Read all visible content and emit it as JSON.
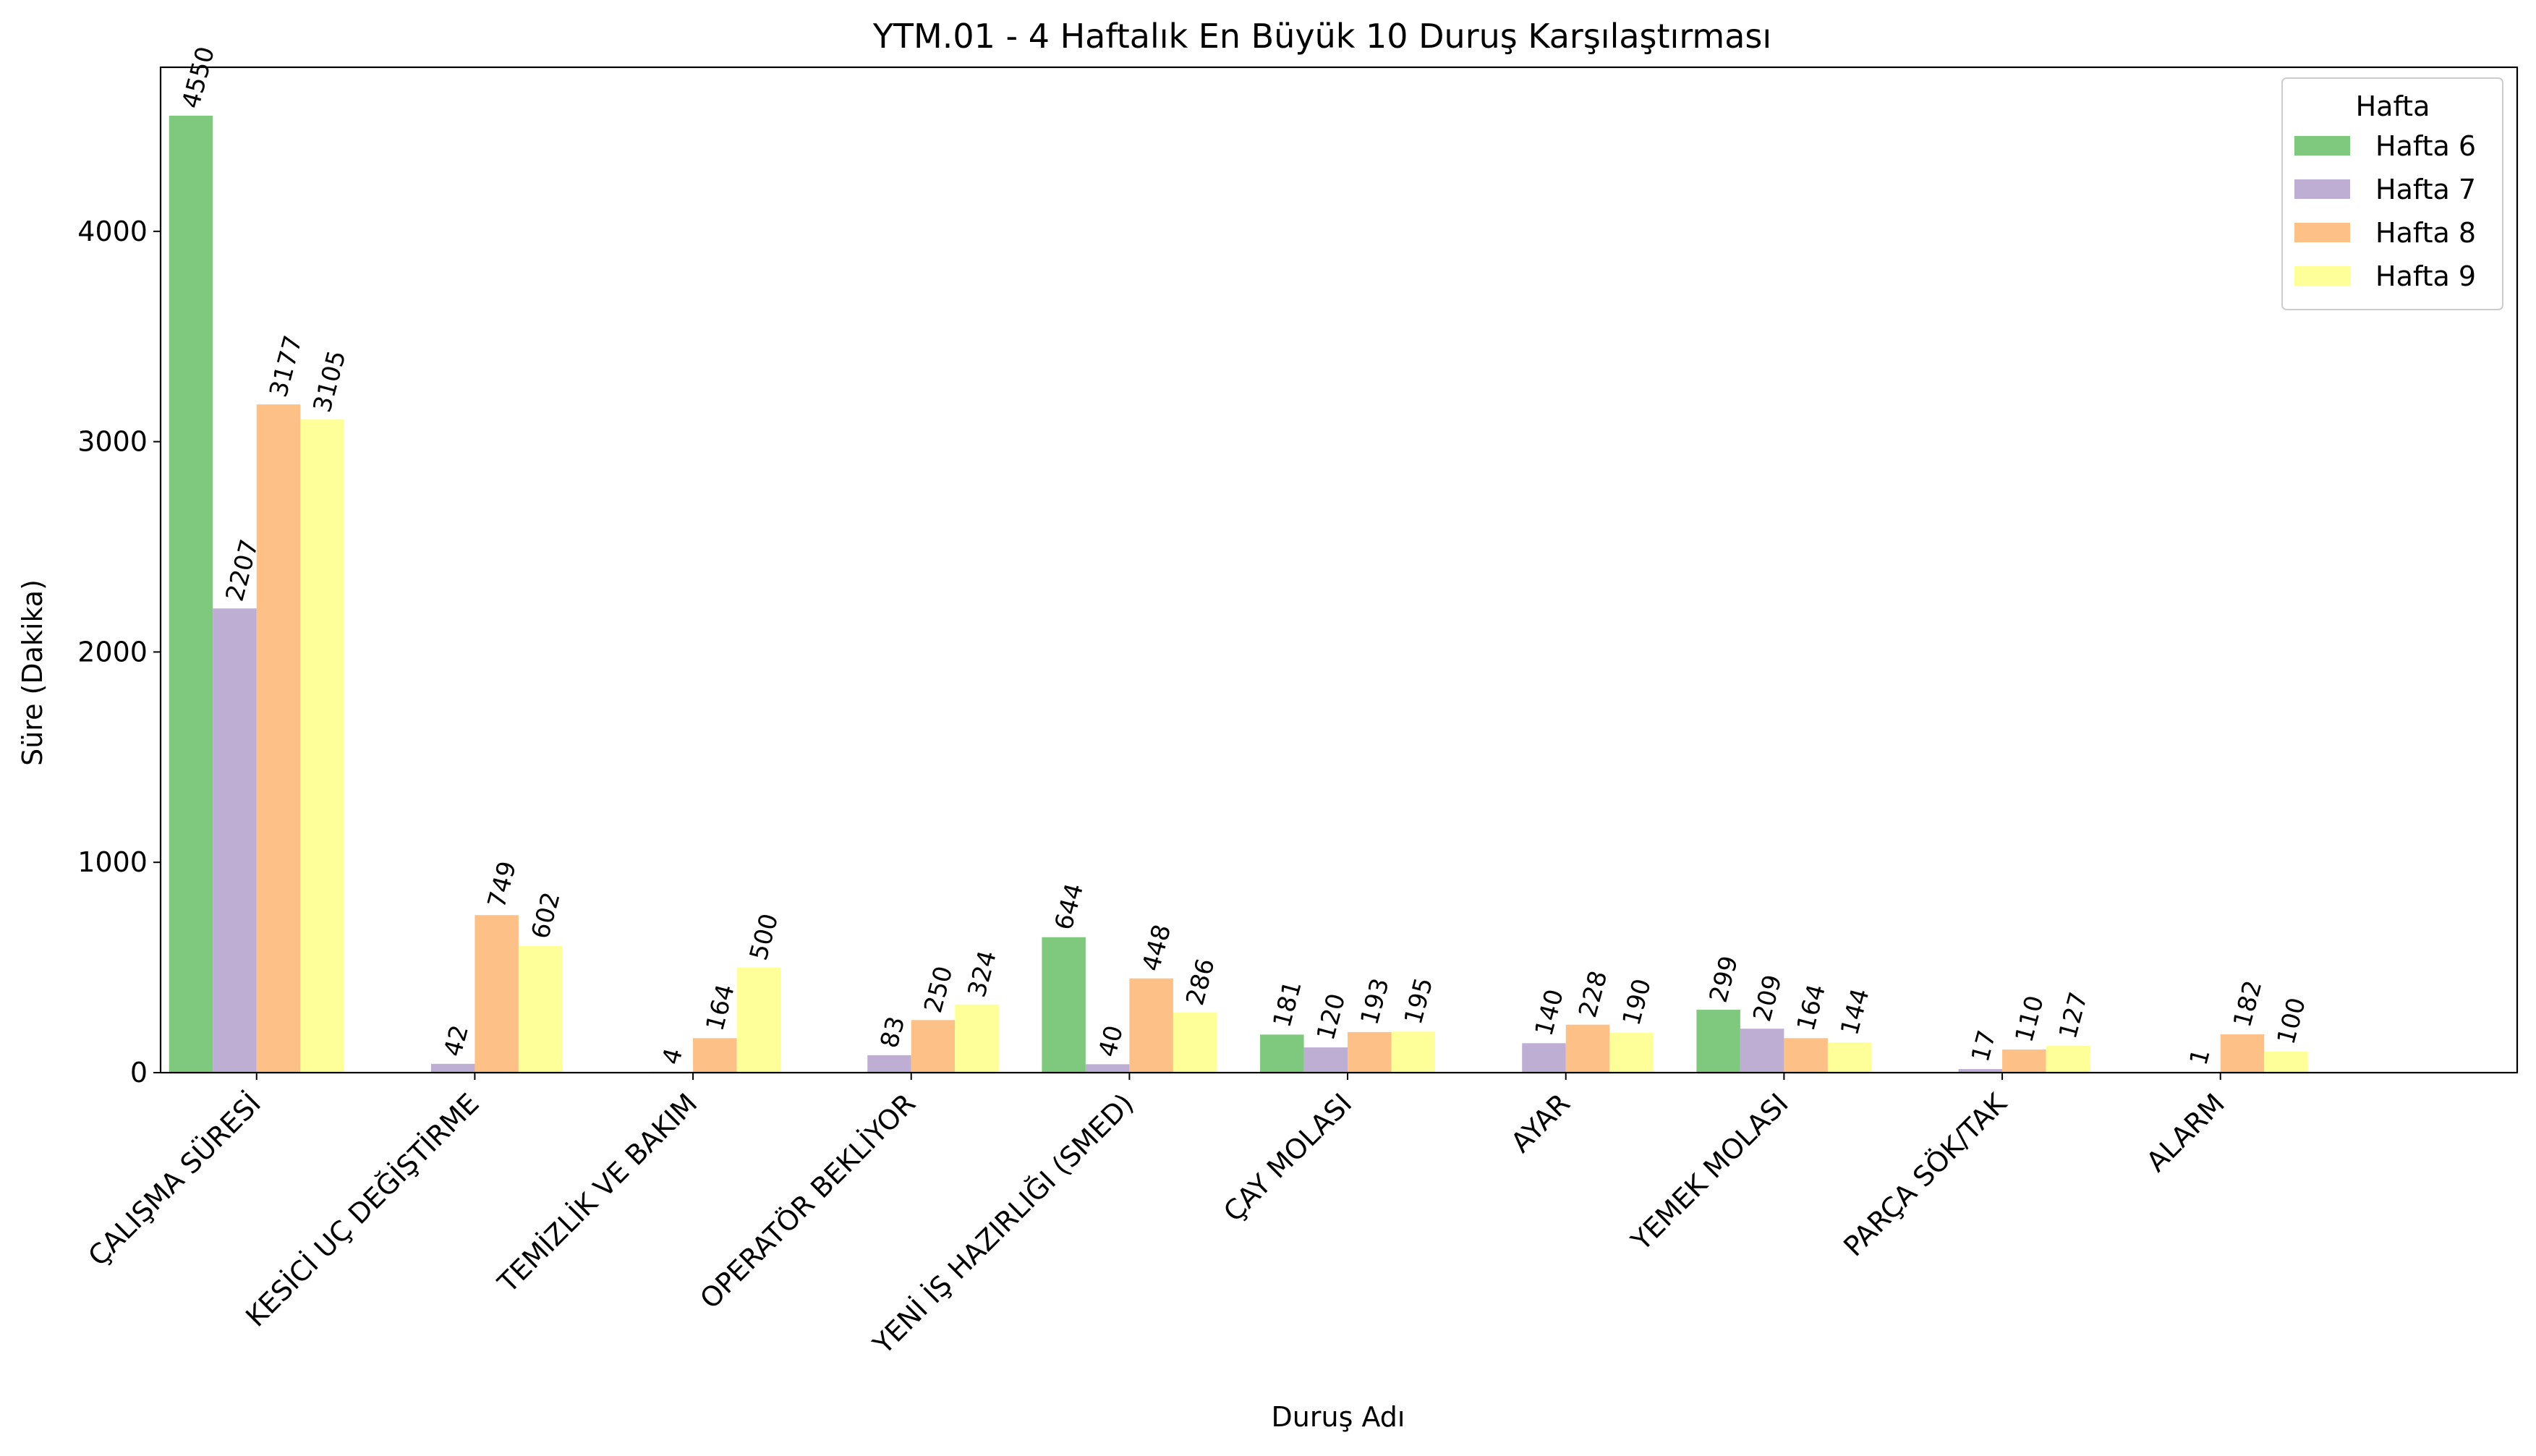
{
  "chart_data": {
    "type": "bar",
    "title": "YTM.01 - 4 Haftalık En Büyük 10 Duruş Karşılaştırması",
    "xlabel": "Duruş Adı",
    "ylabel": "Süre (Dakika)",
    "ylim": [
      0,
      4780
    ],
    "yticks": [
      0,
      1000,
      2000,
      3000,
      4000
    ],
    "categories": [
      "ÇALIŞMA SÜRESİ",
      "KESİCİ UÇ DEĞİŞTİRME",
      "TEMİZLİK VE BAKIM",
      "OPERATÖR BEKLİYOR",
      "YENİ İŞ HAZIRLIĞI (SMED)",
      "ÇAY MOLASI",
      "AYAR",
      "YEMEK MOLASI",
      "PARÇA SÖK/TAK",
      "ALARM"
    ],
    "series": [
      {
        "name": "Hafta 6",
        "color": "#7fc97f",
        "values": [
          4550,
          null,
          null,
          null,
          644,
          181,
          null,
          299,
          null,
          null
        ]
      },
      {
        "name": "Hafta 7",
        "color": "#beaed4",
        "values": [
          2207,
          42,
          4,
          83,
          40,
          120,
          140,
          209,
          17,
          1
        ]
      },
      {
        "name": "Hafta 8",
        "color": "#fdc086",
        "values": [
          3177,
          749,
          164,
          250,
          448,
          193,
          228,
          164,
          110,
          182
        ]
      },
      {
        "name": "Hafta 9",
        "color": "#ffff99",
        "values": [
          3105,
          602,
          500,
          324,
          286,
          195,
          190,
          144,
          127,
          100
        ]
      }
    ],
    "legend": {
      "title": "Hafta",
      "position": "top-right"
    },
    "grid": false
  }
}
